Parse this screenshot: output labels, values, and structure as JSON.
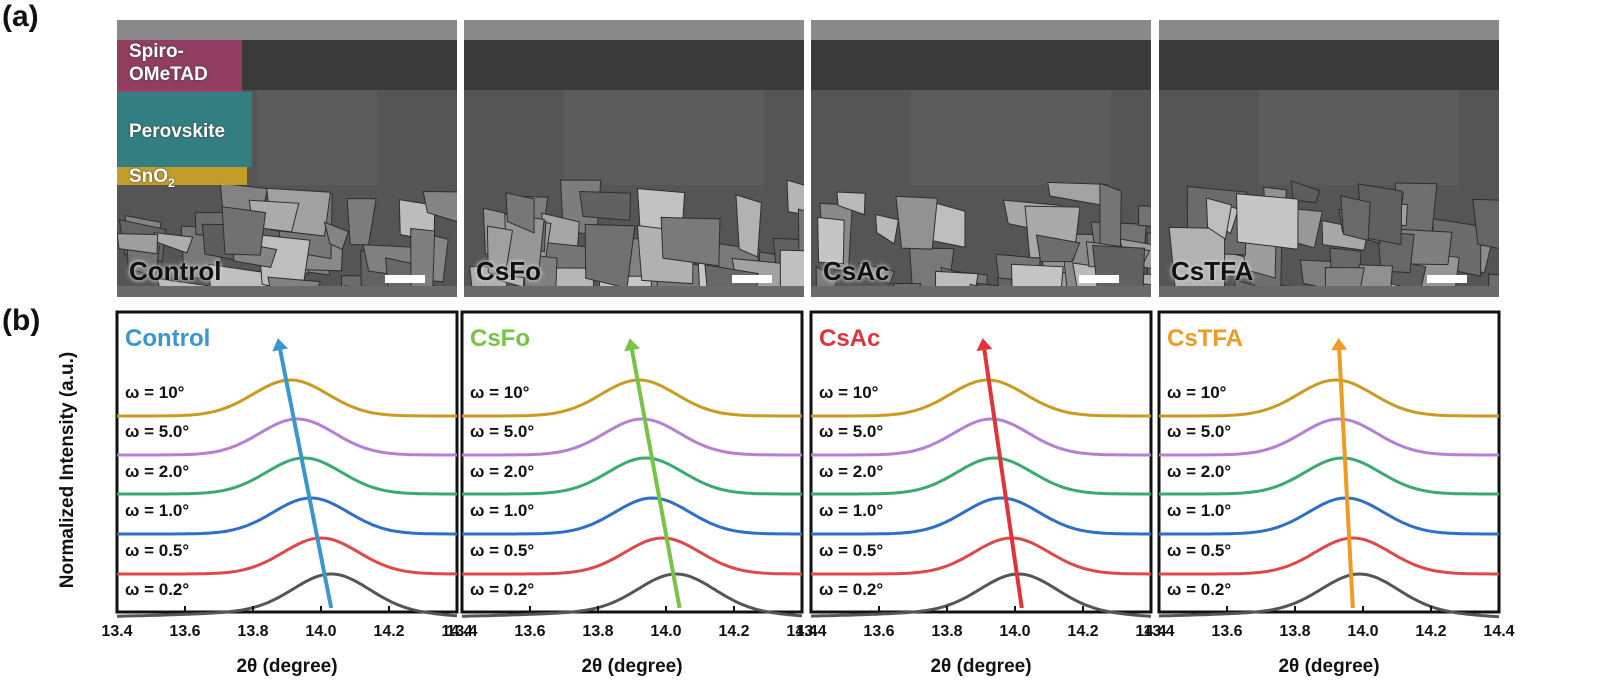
{
  "panel_labels": {
    "a": "(a)",
    "b": "(b)"
  },
  "sem_images": [
    {
      "label": "Control",
      "layers": [
        "Spiro-",
        "OMeTAD",
        "Perovskite",
        "SnO",
        "2"
      ]
    },
    {
      "label": "CsFo"
    },
    {
      "label": "CsAc"
    },
    {
      "label": "CsTFA"
    }
  ],
  "colors": {
    "layer_spiro": "#b0406f",
    "layer_perovskite": "#2a8a8e",
    "layer_sno2": "#e0b020",
    "omega": [
      "#555555",
      "#e04848",
      "#2e6fc8",
      "#3aaa70",
      "#b57fd8",
      "#cc9a20"
    ]
  },
  "chart_data": [
    {
      "type": "line",
      "title": "Control",
      "title_color": "#3a96cf",
      "xlabel": "2θ (degree)",
      "ylabel": "Normalized Intensity (a.u.)",
      "xlim": [
        13.4,
        14.4
      ],
      "xticks": [
        "13.4",
        "13.6",
        "13.8",
        "14.0",
        "14.2",
        "14.4"
      ],
      "series": [
        {
          "name": "ω = 0.2°",
          "peak": 14.03
        },
        {
          "name": "ω = 0.5°",
          "peak": 14.0
        },
        {
          "name": "ω = 1.0°",
          "peak": 13.97
        },
        {
          "name": "ω = 2.0°",
          "peak": 13.95
        },
        {
          "name": "ω = 5.0°",
          "peak": 13.93
        },
        {
          "name": "ω = 10°",
          "peak": 13.91
        }
      ],
      "trend_arrow": {
        "from": 14.03,
        "to": 13.88
      }
    },
    {
      "type": "line",
      "title": "CsFo",
      "title_color": "#76c442",
      "xlabel": "2θ (degree)",
      "xlim": [
        13.4,
        14.4
      ],
      "xticks": [
        "13.4",
        "13.6",
        "13.8",
        "14.0",
        "14.2",
        "14.4"
      ],
      "series": [
        {
          "name": "ω = 0.2°",
          "peak": 14.03
        },
        {
          "name": "ω = 0.5°",
          "peak": 13.99
        },
        {
          "name": "ω = 1.0°",
          "peak": 13.96
        },
        {
          "name": "ω = 2.0°",
          "peak": 13.94
        },
        {
          "name": "ω = 5.0°",
          "peak": 13.93
        },
        {
          "name": "ω = 10°",
          "peak": 13.92
        }
      ],
      "trend_arrow": {
        "from": 14.04,
        "to": 13.9
      }
    },
    {
      "type": "line",
      "title": "CsAc",
      "title_color": "#e0343a",
      "xlabel": "2θ (degree)",
      "xlim": [
        13.4,
        14.4
      ],
      "xticks": [
        "13.4",
        "13.6",
        "13.8",
        "14.0",
        "14.2",
        "14.4"
      ],
      "series": [
        {
          "name": "ω = 0.2°",
          "peak": 14.01
        },
        {
          "name": "ω = 0.5°",
          "peak": 13.99
        },
        {
          "name": "ω = 1.0°",
          "peak": 13.96
        },
        {
          "name": "ω = 2.0°",
          "peak": 13.94
        },
        {
          "name": "ω = 5.0°",
          "peak": 13.93
        },
        {
          "name": "ω = 10°",
          "peak": 13.92
        }
      ],
      "trend_arrow": {
        "from": 14.02,
        "to": 13.91
      }
    },
    {
      "type": "line",
      "title": "CsTFA",
      "title_color": "#ef9a22",
      "xlabel": "2θ (degree)",
      "xlim": [
        13.4,
        14.4
      ],
      "xticks": [
        "13.4",
        "13.6",
        "13.8",
        "14.0",
        "14.2",
        "14.4"
      ],
      "series": [
        {
          "name": "ω = 0.2°",
          "peak": 13.99
        },
        {
          "name": "ω = 0.5°",
          "peak": 13.97
        },
        {
          "name": "ω = 1.0°",
          "peak": 13.95
        },
        {
          "name": "ω = 2.0°",
          "peak": 13.94
        },
        {
          "name": "ω = 5.0°",
          "peak": 13.93
        },
        {
          "name": "ω = 10°",
          "peak": 13.92
        }
      ],
      "trend_arrow": {
        "from": 13.97,
        "to": 13.93
      }
    }
  ]
}
